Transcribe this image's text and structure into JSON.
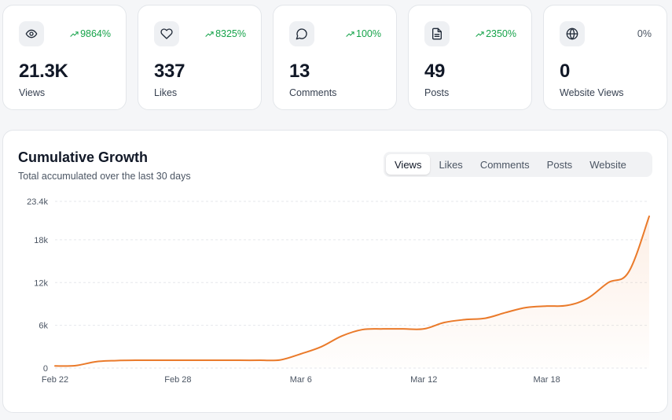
{
  "stats": [
    {
      "icon": "eye-icon",
      "change": "9864%",
      "trend": "up",
      "value": "21.3K",
      "label": "Views"
    },
    {
      "icon": "heart-icon",
      "change": "8325%",
      "trend": "up",
      "value": "337",
      "label": "Likes"
    },
    {
      "icon": "comment-icon",
      "change": "100%",
      "trend": "up",
      "value": "13",
      "label": "Comments"
    },
    {
      "icon": "document-icon",
      "change": "2350%",
      "trend": "up",
      "value": "49",
      "label": "Posts"
    },
    {
      "icon": "globe-icon",
      "change": "0%",
      "trend": "neutral",
      "value": "0",
      "label": "Website Views"
    }
  ],
  "chart": {
    "title": "Cumulative Growth",
    "subtitle": "Total accumulated over the last 30 days",
    "tabs": [
      "Views",
      "Likes",
      "Comments",
      "Posts",
      "Website"
    ],
    "active_tab": "Views"
  },
  "colors": {
    "accent": "#ea7a2a",
    "positive": "#16a34a",
    "neutral": "#4b5563"
  },
  "chart_data": {
    "type": "area",
    "title": "Cumulative Growth",
    "subtitle": "Total accumulated over the last 30 days",
    "series": [
      {
        "name": "Views",
        "values": [
          300,
          350,
          900,
          1050,
          1100,
          1100,
          1100,
          1100,
          1100,
          1100,
          1100,
          1150,
          2000,
          3000,
          4500,
          5400,
          5500,
          5500,
          5500,
          6400,
          6800,
          7000,
          7800,
          8500,
          8700,
          8800,
          9800,
          12000,
          13500,
          21300
        ]
      }
    ],
    "x": [
      0,
      1,
      2,
      3,
      4,
      5,
      6,
      7,
      8,
      9,
      10,
      11,
      12,
      13,
      14,
      15,
      16,
      17,
      18,
      19,
      20,
      21,
      22,
      23,
      24,
      25,
      26,
      27,
      28,
      29
    ],
    "x_ticks": [
      {
        "label": "Feb 22",
        "index": 0
      },
      {
        "label": "Feb 28",
        "index": 6
      },
      {
        "label": "Mar 6",
        "index": 12
      },
      {
        "label": "Mar 12",
        "index": 18
      },
      {
        "label": "Mar 18",
        "index": 24
      }
    ],
    "y_ticks": [
      {
        "label": "0",
        "value": 0
      },
      {
        "label": "6k",
        "value": 6000
      },
      {
        "label": "12k",
        "value": 12000
      },
      {
        "label": "18k",
        "value": 18000
      },
      {
        "label": "23.4k",
        "value": 23400
      }
    ],
    "ylim": [
      0,
      23400
    ],
    "grid": true
  }
}
